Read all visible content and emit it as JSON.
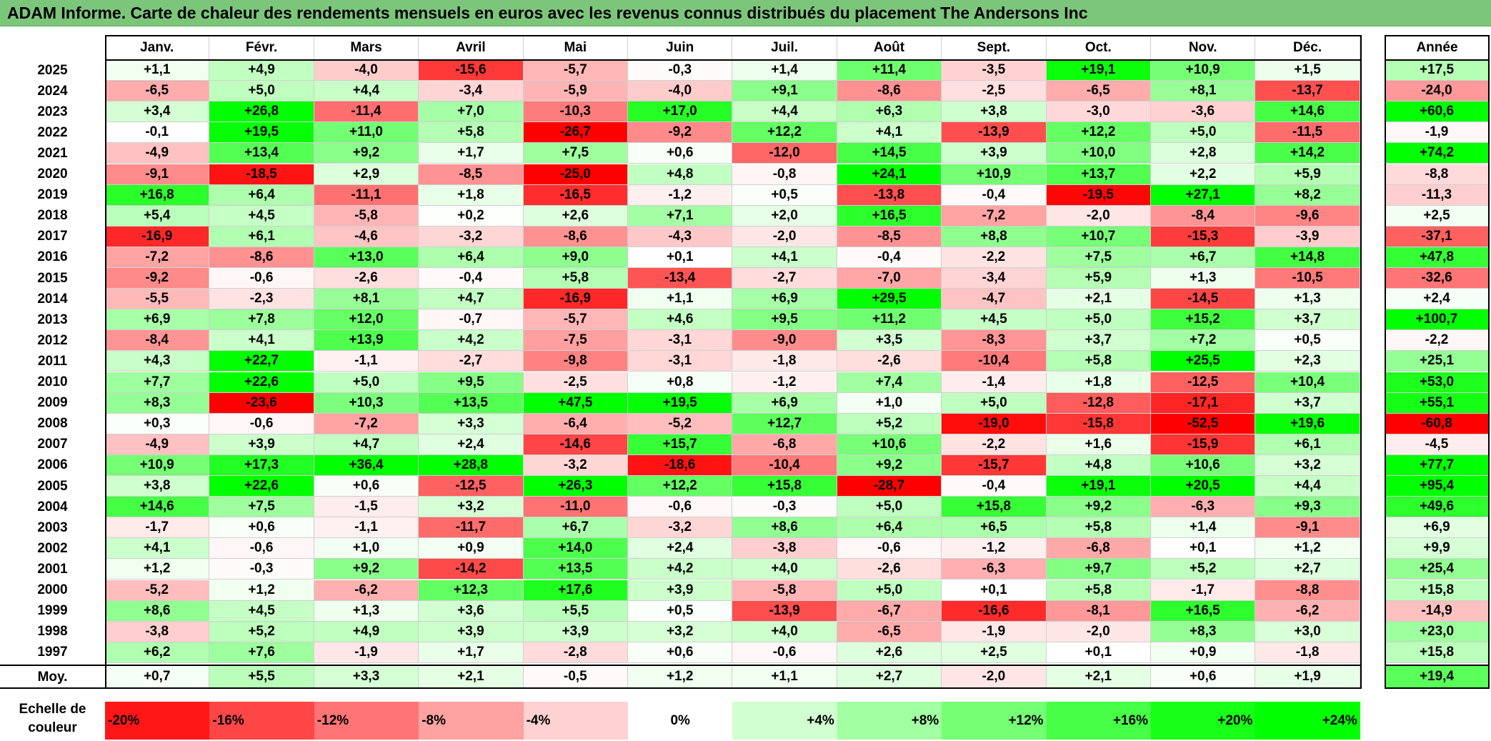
{
  "title": "ADAM Informe. Carte de chaleur des rendements mensuels en euros avec les revenus connus distribués du placement The Andersons Inc",
  "chart_data": {
    "type": "heatmap",
    "title": "ADAM Informe. Carte de chaleur des rendements mensuels en euros avec les revenus connus distribués du placement The Andersons Inc",
    "columns": [
      "Janv.",
      "Févr.",
      "Mars",
      "Avril",
      "Mai",
      "Juin",
      "Juil.",
      "Août",
      "Sept.",
      "Oct.",
      "Nov.",
      "Déc."
    ],
    "year_column_label": "Année",
    "rows": [
      {
        "year": "2025",
        "values": [
          "+1,1",
          "+4,9",
          "-4,0",
          "-15,6",
          "-5,7",
          "-0,3",
          "+1,4",
          "+11,4",
          "-3,5",
          "+19,1",
          "+10,9",
          "+1,5"
        ],
        "annual": "+17,5"
      },
      {
        "year": "2024",
        "values": [
          "-6,5",
          "+5,0",
          "+4,4",
          "-3,4",
          "-5,9",
          "-4,0",
          "+9,1",
          "-8,6",
          "-2,5",
          "-6,5",
          "+8,1",
          "-13,7"
        ],
        "annual": "-24,0"
      },
      {
        "year": "2023",
        "values": [
          "+3,4",
          "+26,8",
          "-11,4",
          "+7,0",
          "-10,3",
          "+17,0",
          "+4,4",
          "+6,3",
          "+3,8",
          "-3,0",
          "-3,6",
          "+14,6"
        ],
        "annual": "+60,6"
      },
      {
        "year": "2022",
        "values": [
          "-0,1",
          "+19,5",
          "+11,0",
          "+5,8",
          "-26,7",
          "-9,2",
          "+12,2",
          "+4,1",
          "-13,9",
          "+12,2",
          "+5,0",
          "-11,5"
        ],
        "annual": "-1,9"
      },
      {
        "year": "2021",
        "values": [
          "-4,9",
          "+13,4",
          "+9,2",
          "+1,7",
          "+7,5",
          "+0,6",
          "-12,0",
          "+14,5",
          "+3,9",
          "+10,0",
          "+2,8",
          "+14,2"
        ],
        "annual": "+74,2"
      },
      {
        "year": "2020",
        "values": [
          "-9,1",
          "-18,5",
          "+2,9",
          "-8,5",
          "-25,0",
          "+4,8",
          "-0,8",
          "+24,1",
          "+10,9",
          "+13,7",
          "+2,2",
          "+5,9"
        ],
        "annual": "-8,8"
      },
      {
        "year": "2019",
        "values": [
          "+16,8",
          "+6,4",
          "-11,1",
          "+1,8",
          "-16,5",
          "-1,2",
          "+0,5",
          "-13,8",
          "-0,4",
          "-19,5",
          "+27,1",
          "+8,2"
        ],
        "annual": "-11,3"
      },
      {
        "year": "2018",
        "values": [
          "+5,4",
          "+4,5",
          "-5,8",
          "+0,2",
          "+2,6",
          "+7,1",
          "+2,0",
          "+16,5",
          "-7,2",
          "-2,0",
          "-8,4",
          "-9,6"
        ],
        "annual": "+2,5"
      },
      {
        "year": "2017",
        "values": [
          "-16,9",
          "+6,1",
          "-4,6",
          "-3,2",
          "-8,6",
          "-4,3",
          "-2,0",
          "-8,5",
          "+8,8",
          "+10,7",
          "-15,3",
          "-3,9"
        ],
        "annual": "-37,1"
      },
      {
        "year": "2016",
        "values": [
          "-7,2",
          "-8,6",
          "+13,0",
          "+6,4",
          "+9,0",
          "+0,1",
          "+4,1",
          "-0,4",
          "-2,2",
          "+7,5",
          "+6,7",
          "+14,8"
        ],
        "annual": "+47,8"
      },
      {
        "year": "2015",
        "values": [
          "-9,2",
          "-0,6",
          "-2,6",
          "-0,4",
          "+5,8",
          "-13,4",
          "-2,7",
          "-7,0",
          "-3,4",
          "+5,9",
          "+1,3",
          "-10,5"
        ],
        "annual": "-32,6"
      },
      {
        "year": "2014",
        "values": [
          "-5,5",
          "-2,3",
          "+8,1",
          "+4,7",
          "-16,9",
          "+1,1",
          "+6,9",
          "+29,5",
          "-4,7",
          "+2,1",
          "-14,5",
          "+1,3"
        ],
        "annual": "+2,4"
      },
      {
        "year": "2013",
        "values": [
          "+6,9",
          "+7,8",
          "+12,0",
          "-0,7",
          "-5,7",
          "+4,6",
          "+9,5",
          "+11,2",
          "+4,5",
          "+5,0",
          "+15,2",
          "+3,7"
        ],
        "annual": "+100,7"
      },
      {
        "year": "2012",
        "values": [
          "-8,4",
          "+4,1",
          "+13,9",
          "+4,2",
          "-7,5",
          "-3,1",
          "-9,0",
          "+3,5",
          "-8,3",
          "+3,7",
          "+7,2",
          "+0,5"
        ],
        "annual": "-2,2"
      },
      {
        "year": "2011",
        "values": [
          "+4,3",
          "+22,7",
          "-1,1",
          "-2,7",
          "-9,8",
          "-3,1",
          "-1,8",
          "-2,6",
          "-10,4",
          "+5,8",
          "+25,5",
          "+2,3"
        ],
        "annual": "+25,1"
      },
      {
        "year": "2010",
        "values": [
          "+7,7",
          "+22,6",
          "+5,0",
          "+9,5",
          "-2,5",
          "+0,8",
          "-1,2",
          "+7,4",
          "-1,4",
          "+1,8",
          "-12,5",
          "+10,4"
        ],
        "annual": "+53,0"
      },
      {
        "year": "2009",
        "values": [
          "+8,3",
          "-23,6",
          "+10,3",
          "+13,5",
          "+47,5",
          "+19,5",
          "+6,9",
          "+1,0",
          "+5,0",
          "-12,8",
          "-17,1",
          "+3,7"
        ],
        "annual": "+55,1"
      },
      {
        "year": "2008",
        "values": [
          "+0,3",
          "-0,6",
          "-7,2",
          "+3,3",
          "-6,4",
          "-5,2",
          "+12,7",
          "+5,2",
          "-19,0",
          "-15,8",
          "-52,5",
          "+19,6"
        ],
        "annual": "-60,8"
      },
      {
        "year": "2007",
        "values": [
          "-4,9",
          "+3,9",
          "+4,7",
          "+2,4",
          "-14,6",
          "+15,7",
          "-6,8",
          "+10,6",
          "-2,2",
          "+1,6",
          "-15,9",
          "+6,1"
        ],
        "annual": "-4,5"
      },
      {
        "year": "2006",
        "values": [
          "+10,9",
          "+17,3",
          "+36,4",
          "+28,8",
          "-3,2",
          "-18,6",
          "-10,4",
          "+9,2",
          "-15,7",
          "+4,8",
          "+10,6",
          "+3,2"
        ],
        "annual": "+77,7"
      },
      {
        "year": "2005",
        "values": [
          "+3,8",
          "+22,6",
          "+0,6",
          "-12,5",
          "+26,3",
          "+12,2",
          "+15,8",
          "-28,7",
          "-0,4",
          "+19,1",
          "+20,5",
          "+4,4"
        ],
        "annual": "+95,4"
      },
      {
        "year": "2004",
        "values": [
          "+14,6",
          "+7,5",
          "-1,5",
          "+3,2",
          "-11,0",
          "-0,6",
          "-0,3",
          "+5,0",
          "+15,8",
          "+9,2",
          "-6,3",
          "+9,3"
        ],
        "annual": "+49,6"
      },
      {
        "year": "2003",
        "values": [
          "-1,7",
          "+0,6",
          "-1,1",
          "-11,7",
          "+6,7",
          "-3,2",
          "+8,6",
          "+6,4",
          "+6,5",
          "+5,8",
          "+1,4",
          "-9,1"
        ],
        "annual": "+6,9"
      },
      {
        "year": "2002",
        "values": [
          "+4,1",
          "-0,6",
          "+1,0",
          "+0,9",
          "+14,0",
          "+2,4",
          "-3,8",
          "-0,6",
          "-1,2",
          "-6,8",
          "+0,1",
          "+1,2"
        ],
        "annual": "+9,9"
      },
      {
        "year": "2001",
        "values": [
          "+1,2",
          "-0,3",
          "+9,2",
          "-14,2",
          "+13,5",
          "+4,2",
          "+4,0",
          "-2,6",
          "-6,3",
          "+9,7",
          "+5,2",
          "+2,7"
        ],
        "annual": "+25,4"
      },
      {
        "year": "2000",
        "values": [
          "-5,2",
          "+1,2",
          "-6,2",
          "+12,3",
          "+17,6",
          "+3,9",
          "-5,8",
          "+5,0",
          "+0,1",
          "+5,8",
          "-1,7",
          "-8,8"
        ],
        "annual": "+15,8"
      },
      {
        "year": "1999",
        "values": [
          "+8,6",
          "+4,5",
          "+1,3",
          "+3,6",
          "+5,5",
          "+0,5",
          "-13,9",
          "-6,7",
          "-16,6",
          "-8,1",
          "+16,5",
          "-6,2"
        ],
        "annual": "-14,9"
      },
      {
        "year": "1998",
        "values": [
          "-3,8",
          "+5,2",
          "+4,9",
          "+3,9",
          "+3,9",
          "+3,2",
          "+4,0",
          "-6,5",
          "-1,9",
          "-2,0",
          "+8,3",
          "+3,0"
        ],
        "annual": "+23,0"
      },
      {
        "year": "1997",
        "values": [
          "+6,2",
          "+7,6",
          "-1,9",
          "+1,7",
          "-2,8",
          "+0,6",
          "-0,6",
          "+2,6",
          "+2,5",
          "+0,1",
          "+0,9",
          "-1,8"
        ],
        "annual": "+15,8"
      }
    ],
    "average": {
      "label": "Moy.",
      "values": [
        "+0,7",
        "+5,5",
        "+3,3",
        "+2,1",
        "-0,5",
        "+1,2",
        "+1,1",
        "+2,7",
        "-2,0",
        "+2,1",
        "+0,6",
        "+1,9"
      ],
      "annual": "+19,4"
    },
    "color_scale": {
      "label_line1": "Echelle de",
      "label_line2": "couleur",
      "stops": [
        "-20%",
        "-16%",
        "-12%",
        "-8%",
        "-4%",
        "0%",
        "+4%",
        "+8%",
        "+12%",
        "+16%",
        "+20%",
        "+24%"
      ],
      "stop_values": [
        -20,
        -16,
        -12,
        -8,
        -4,
        0,
        4,
        8,
        12,
        16,
        20,
        24
      ]
    },
    "colors": {
      "negative_max": "#ff0000",
      "neutral": "#ffffff",
      "positive_max": "#00ff00",
      "title_bar": "#7cc67c"
    }
  }
}
